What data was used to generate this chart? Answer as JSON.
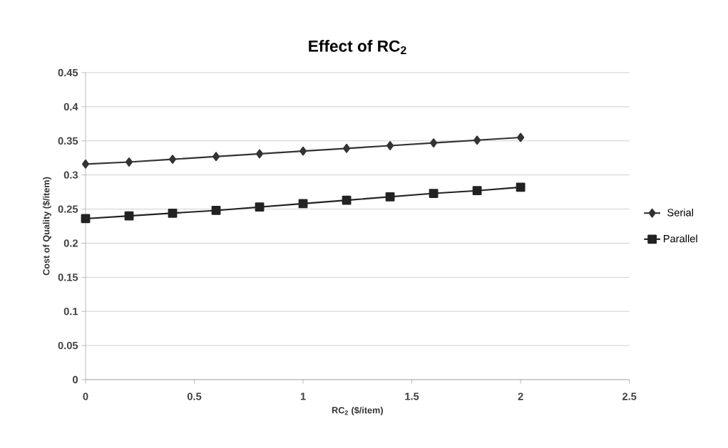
{
  "chart_data": {
    "type": "line",
    "title": "Effect of RC$_{2}$",
    "xlabel": "RC$_{2}$ ($/item)",
    "ylabel": "Cost of Quality ($/item)",
    "x": [
      0,
      0.2,
      0.4,
      0.6,
      0.8,
      1,
      1.2,
      1.4,
      1.6,
      1.8,
      2
    ],
    "series": [
      {
        "name": "Serial",
        "color": "#333333",
        "marker": "diamond",
        "values": [
          0.316,
          0.319,
          0.323,
          0.327,
          0.331,
          0.335,
          0.339,
          0.343,
          0.347,
          0.351,
          0.355
        ]
      },
      {
        "name": "Parallel",
        "color": "#222222",
        "marker": "square",
        "values": [
          0.236,
          0.24,
          0.244,
          0.248,
          0.253,
          0.258,
          0.263,
          0.268,
          0.273,
          0.277,
          0.282
        ]
      }
    ],
    "xlim": [
      0,
      2.5
    ],
    "xticks": [
      0,
      0.5,
      1,
      1.5,
      2,
      2.5
    ],
    "ylim": [
      0,
      0.45
    ],
    "yticks": [
      0,
      0.05,
      0.1,
      0.15,
      0.2,
      0.25,
      0.3,
      0.35,
      0.4,
      0.45
    ],
    "grid": "y",
    "legend": "right",
    "line_style": "solid"
  }
}
